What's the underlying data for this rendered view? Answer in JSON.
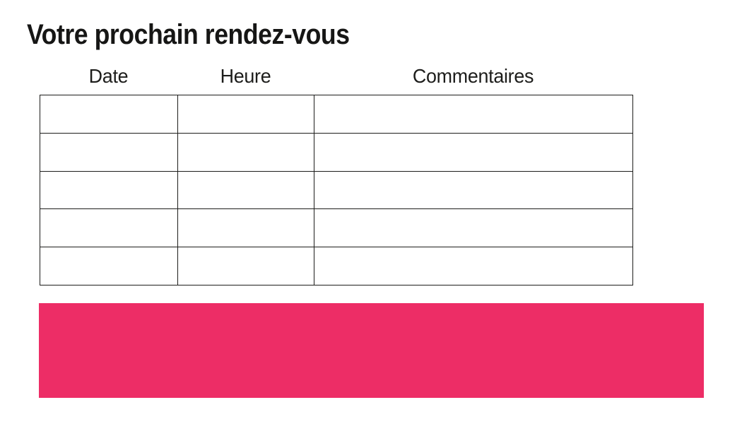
{
  "page": {
    "title": "Votre prochain rendez-vous",
    "background": "#ffffff"
  },
  "table": {
    "headers": [
      "Date",
      "Heure",
      "Commentaires"
    ],
    "row_count": 5,
    "rows": [
      [
        "",
        "",
        ""
      ],
      [
        "",
        "",
        ""
      ],
      [
        "",
        "",
        ""
      ],
      [
        "",
        "",
        ""
      ],
      [
        "",
        "",
        ""
      ]
    ]
  },
  "banner": {
    "text": "",
    "color": "#ED2D66"
  },
  "colors": {
    "accent_pink": "#ED2D66",
    "border": "#1d1d1b",
    "text": "#161615"
  }
}
